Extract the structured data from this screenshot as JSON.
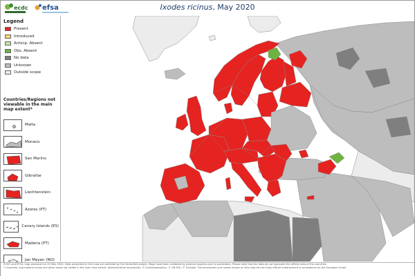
{
  "header": {
    "title_species": "Ixodes ricinus",
    "title_date": ", May 2020",
    "logo_ecdc": "ecdc",
    "logo_efsa": "efsa"
  },
  "legend": {
    "title": "Legend",
    "items": [
      {
        "label": "Present",
        "color": "#e52320"
      },
      {
        "label": "Introduced",
        "color": "#f6d87a"
      },
      {
        "label": "Anticip. Absent",
        "color": "#c9e3a1"
      },
      {
        "label": "Obs. Absent",
        "color": "#6cb43f"
      },
      {
        "label": "No data",
        "color": "#7f7f7f"
      },
      {
        "label": "Unknown",
        "color": "#bdbdbd"
      },
      {
        "label": "Outside scope",
        "color": "#ececec"
      }
    ]
  },
  "not_viewable": {
    "title": "Countries/Regions not viewable in the main map extent*",
    "items": [
      {
        "label": "Malta",
        "icon": "malta-icon",
        "color": "#bdbdbd"
      },
      {
        "label": "Monaco",
        "icon": "monaco-icon",
        "color": "#bdbdbd"
      },
      {
        "label": "San Marino",
        "icon": "san-marino-icon",
        "color": "#e52320"
      },
      {
        "label": "Gibraltar",
        "icon": "gibraltar-icon",
        "color": "#e52320"
      },
      {
        "label": "Liechtenstein",
        "icon": "liechtenstein-icon",
        "color": "#e52320"
      },
      {
        "label": "Azores (PT)",
        "icon": "azores-icon",
        "color": "#ececec"
      },
      {
        "label": "Canary Islands (ES)",
        "icon": "canary-islands-icon",
        "color": "#ececec"
      },
      {
        "label": "Madeira (PT)",
        "icon": "madeira-icon",
        "color": "#e52320"
      },
      {
        "label": "Jan Mayen (NO)",
        "icon": "jan-mayen-icon",
        "color": "#ececec"
      }
    ]
  },
  "footer": {
    "line1": "ECDC and EFSA, map produced on 20 May 2020. Data presented in this map are collected by the VectorNet project. Maps have been validated by external experts prior to publication. Please note that the data do not represent the official view of the countries.",
    "line2": "* Countries, sub-national areas and other areas not visible in the main map extent. Administrative boundaries: © EuroGeographics, © UN-FAO, © Turkstat. The boundaries and names shown on this map do not imply official endorsement or acceptance by the European Union."
  },
  "colors": {
    "present": "#e52320",
    "obs_absent": "#6cb43f",
    "no_data": "#7f7f7f",
    "unknown": "#bdbdbd",
    "outside": "#ececec",
    "sea": "#ffffff",
    "border": "#8a8a8a"
  }
}
